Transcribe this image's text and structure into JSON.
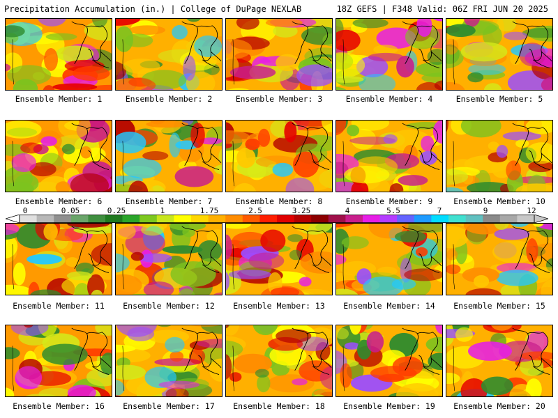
{
  "header": {
    "title": "Precipitation Accumulation (in.) | College of DuPage NEXLAB",
    "run_info": "18Z GEFS | F348 Valid: 06Z FRI JUN 20 2025"
  },
  "panels": [
    {
      "label": "Ensemble Member: 1"
    },
    {
      "label": "Ensemble Member: 2"
    },
    {
      "label": "Ensemble Member: 3"
    },
    {
      "label": "Ensemble Member: 4"
    },
    {
      "label": "Ensemble Member: 5"
    },
    {
      "label": "Ensemble Member: 6"
    },
    {
      "label": "Ensemble Member: 7"
    },
    {
      "label": "Ensemble Member: 8"
    },
    {
      "label": "Ensemble Member: 9"
    },
    {
      "label": "Ensemble Member: 10"
    },
    {
      "label": "Ensemble Member: 11"
    },
    {
      "label": "Ensemble Member: 12"
    },
    {
      "label": "Ensemble Member: 13"
    },
    {
      "label": "Ensemble Member: 14"
    },
    {
      "label": "Ensemble Member: 15"
    },
    {
      "label": "Ensemble Member: 16"
    },
    {
      "label": "Ensemble Member: 17"
    },
    {
      "label": "Ensemble Member: 18"
    },
    {
      "label": "Ensemble Member: 19"
    },
    {
      "label": "Ensemble Member: 20"
    }
  ],
  "colorbar": {
    "tick_labels": [
      "0",
      "0.05",
      "0.25",
      "1",
      "1.75",
      "2.5",
      "3.25",
      "4",
      "5.5",
      "7",
      "9",
      "12"
    ],
    "colors": [
      "#e0e0e0",
      "#b8b8b8",
      "#909090",
      "#6aa56a",
      "#3f8f3f",
      "#1f7a1f",
      "#2aa52a",
      "#7dc81f",
      "#c8e61e",
      "#ffff00",
      "#ffd700",
      "#ffb000",
      "#ff8c00",
      "#ff5a00",
      "#ff1e00",
      "#e00000",
      "#b40000",
      "#8c0000",
      "#a0104a",
      "#c81e8c",
      "#e61ee6",
      "#b43cff",
      "#6464ff",
      "#1e9bff",
      "#00dcff",
      "#40e0d0",
      "#60c0c0",
      "#8a8a8a",
      "#a8a8a8",
      "#c8c8c8"
    ]
  }
}
